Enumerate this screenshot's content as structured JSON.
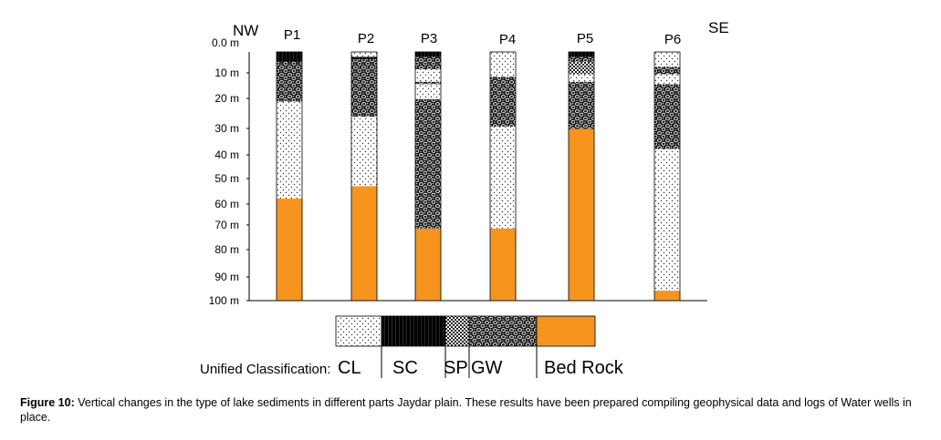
{
  "directions": {
    "left": "NW",
    "right": "SE"
  },
  "depth_axis": {
    "ticks": [
      "0.0 m",
      "10 m",
      "20 m",
      "30 m",
      "40 m",
      "50 m",
      "60 m",
      "70 m",
      "80 m",
      "90 m",
      "100 m"
    ],
    "max_depth": 100
  },
  "legend": {
    "prefix": "Unified Classification:",
    "items": [
      {
        "code": "CL",
        "pattern": "dots"
      },
      {
        "code": "SC",
        "pattern": "black"
      },
      {
        "code": "SP",
        "pattern": "checker"
      },
      {
        "code": "GW",
        "pattern": "gravel"
      },
      {
        "code": "Bed Rock",
        "pattern": "bedrock"
      }
    ]
  },
  "colors": {
    "bedrock": "#f7941d",
    "black": "#000000"
  },
  "wells": [
    {
      "name": "P1",
      "layers": [
        {
          "type": "SC",
          "top": 0,
          "bottom": 4
        },
        {
          "type": "GW",
          "top": 4,
          "bottom": 20
        },
        {
          "type": "CL",
          "top": 20,
          "bottom": 59
        },
        {
          "type": "Bed Rock",
          "top": 59,
          "bottom": 100
        }
      ]
    },
    {
      "name": "P2",
      "layers": [
        {
          "type": "CL",
          "top": 0,
          "bottom": 2
        },
        {
          "type": "SC",
          "top": 2,
          "bottom": 3
        },
        {
          "type": "GW",
          "top": 3,
          "bottom": 26
        },
        {
          "type": "CL",
          "top": 26,
          "bottom": 54
        },
        {
          "type": "Bed Rock",
          "top": 54,
          "bottom": 100
        }
      ]
    },
    {
      "name": "P3",
      "layers": [
        {
          "type": "SC",
          "top": 0,
          "bottom": 2
        },
        {
          "type": "GW",
          "top": 2,
          "bottom": 7
        },
        {
          "type": "CL",
          "top": 7,
          "bottom": 12
        },
        {
          "type": "GW",
          "top": 12,
          "bottom": 13
        },
        {
          "type": "CL",
          "top": 13,
          "bottom": 19
        },
        {
          "type": "GW",
          "top": 19,
          "bottom": 71
        },
        {
          "type": "Bed Rock",
          "top": 71,
          "bottom": 100
        }
      ]
    },
    {
      "name": "P4",
      "layers": [
        {
          "type": "CL",
          "top": 0,
          "bottom": 10
        },
        {
          "type": "GW",
          "top": 10,
          "bottom": 30
        },
        {
          "type": "CL",
          "top": 30,
          "bottom": 71
        },
        {
          "type": "Bed Rock",
          "top": 71,
          "bottom": 100
        }
      ]
    },
    {
      "name": "P5",
      "layers": [
        {
          "type": "SC",
          "top": 0,
          "bottom": 2
        },
        {
          "type": "GW",
          "top": 2,
          "bottom": 4
        },
        {
          "type": "SP",
          "top": 4,
          "bottom": 9
        },
        {
          "type": "CL",
          "top": 9,
          "bottom": 12
        },
        {
          "type": "GW",
          "top": 12,
          "bottom": 31
        },
        {
          "type": "Bed Rock",
          "top": 31,
          "bottom": 100
        }
      ]
    },
    {
      "name": "P6",
      "layers": [
        {
          "type": "CL",
          "top": 0,
          "bottom": 6
        },
        {
          "type": "GW",
          "top": 6,
          "bottom": 9
        },
        {
          "type": "CL",
          "top": 9,
          "bottom": 13
        },
        {
          "type": "GW",
          "top": 13,
          "bottom": 39
        },
        {
          "type": "CL",
          "top": 39,
          "bottom": 96
        },
        {
          "type": "Bed Rock",
          "top": 96,
          "bottom": 100
        }
      ]
    }
  ],
  "caption": {
    "label": "Figure 10:",
    "text": " Vertical changes in the type of lake sediments in different parts Jaydar plain. These results have been prepared compiling geophysical data and logs of Water wells in place."
  }
}
